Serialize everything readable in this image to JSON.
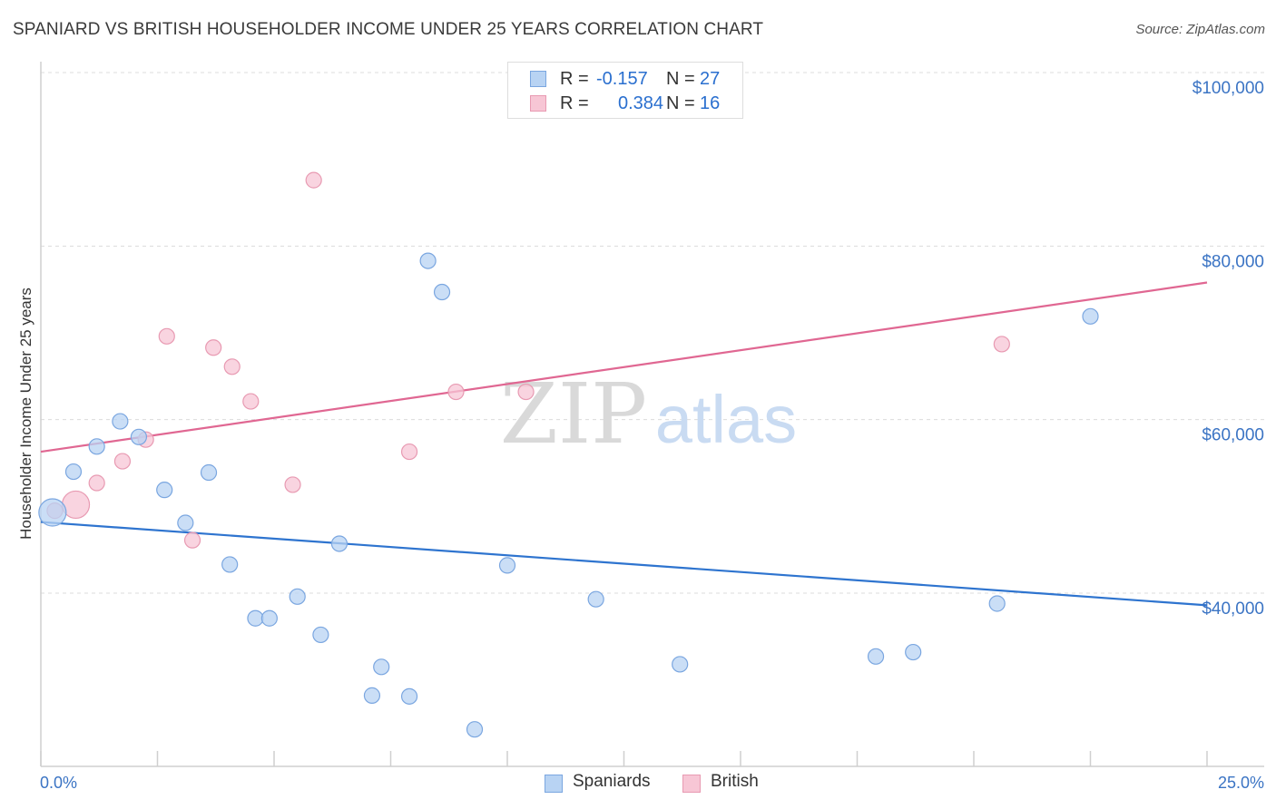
{
  "title": "SPANIARD VS BRITISH HOUSEHOLDER INCOME UNDER 25 YEARS CORRELATION CHART",
  "source": "Source: ZipAtlas.com",
  "watermark": {
    "zip": "ZIP",
    "atlas": "atlas"
  },
  "colors": {
    "spaniards_fill": "#b8d3f3",
    "spaniards_stroke": "#7aa6e0",
    "spaniards_line": "#2e74cf",
    "british_fill": "#f7c6d5",
    "british_stroke": "#e89ab2",
    "british_line": "#e06792",
    "tick_text": "#3b74c4"
  },
  "legend": {
    "rows": [
      {
        "r_label": "R =",
        "r_value": "-0.157",
        "n_label": "N =",
        "n_value": "27"
      },
      {
        "r_label": "R =",
        "r_value": "0.384",
        "n_label": "N =",
        "n_value": "16"
      }
    ]
  },
  "bottom_legend": {
    "spaniards": "Spaniards",
    "british": "British"
  },
  "chart_data": {
    "type": "scatter",
    "title": "SPANIARD VS BRITISH HOUSEHOLDER INCOME UNDER 25 YEARS CORRELATION CHART",
    "xlabel": "",
    "ylabel": "Householder Income Under 25 years",
    "xlim": [
      0,
      25
    ],
    "ylim": [
      20000,
      102000
    ],
    "x_tick_labels": [
      {
        "value": 0,
        "label": "0.0%"
      },
      {
        "value": 25,
        "label": "25.0%"
      }
    ],
    "y_ticks": [
      {
        "value": 40000,
        "label": "$40,000"
      },
      {
        "value": 60000,
        "label": "$60,000"
      },
      {
        "value": 80000,
        "label": "$80,000"
      },
      {
        "value": 100000,
        "label": "$100,000"
      }
    ],
    "series": [
      {
        "name": "Spaniards",
        "r": -0.157,
        "n": 27,
        "trend": {
          "x": [
            0,
            25
          ],
          "y": [
            48200,
            38600
          ]
        },
        "points": [
          {
            "x": 0.25,
            "y": 49300,
            "big": true
          },
          {
            "x": 0.7,
            "y": 54000
          },
          {
            "x": 1.2,
            "y": 56900
          },
          {
            "x": 1.7,
            "y": 59800
          },
          {
            "x": 2.1,
            "y": 58000
          },
          {
            "x": 2.65,
            "y": 51900
          },
          {
            "x": 3.1,
            "y": 48100
          },
          {
            "x": 3.6,
            "y": 53900
          },
          {
            "x": 4.05,
            "y": 43300
          },
          {
            "x": 4.6,
            "y": 37100
          },
          {
            "x": 4.9,
            "y": 37100
          },
          {
            "x": 5.5,
            "y": 39600
          },
          {
            "x": 6.0,
            "y": 35200
          },
          {
            "x": 6.4,
            "y": 45700
          },
          {
            "x": 7.1,
            "y": 28200
          },
          {
            "x": 7.3,
            "y": 31500
          },
          {
            "x": 7.9,
            "y": 28100
          },
          {
            "x": 8.3,
            "y": 78300
          },
          {
            "x": 8.6,
            "y": 74700
          },
          {
            "x": 9.3,
            "y": 24300
          },
          {
            "x": 10.0,
            "y": 43200
          },
          {
            "x": 11.9,
            "y": 39300
          },
          {
            "x": 13.7,
            "y": 31800
          },
          {
            "x": 17.9,
            "y": 32700
          },
          {
            "x": 18.7,
            "y": 33200
          },
          {
            "x": 20.5,
            "y": 38800
          },
          {
            "x": 22.5,
            "y": 71900
          }
        ]
      },
      {
        "name": "British",
        "r": 0.384,
        "n": 16,
        "trend": {
          "x": [
            0,
            25
          ],
          "y": [
            56300,
            75800
          ]
        },
        "points": [
          {
            "x": 0.3,
            "y": 49500
          },
          {
            "x": 0.75,
            "y": 50200,
            "big": true
          },
          {
            "x": 1.2,
            "y": 52700
          },
          {
            "x": 1.75,
            "y": 55200
          },
          {
            "x": 2.25,
            "y": 57700
          },
          {
            "x": 2.7,
            "y": 69600
          },
          {
            "x": 3.25,
            "y": 46100
          },
          {
            "x": 3.7,
            "y": 68300
          },
          {
            "x": 4.1,
            "y": 66100
          },
          {
            "x": 4.5,
            "y": 62100
          },
          {
            "x": 5.4,
            "y": 52500
          },
          {
            "x": 5.85,
            "y": 87600
          },
          {
            "x": 7.9,
            "y": 56300
          },
          {
            "x": 8.9,
            "y": 63200
          },
          {
            "x": 10.4,
            "y": 63200
          },
          {
            "x": 20.6,
            "y": 68700
          }
        ]
      }
    ]
  }
}
